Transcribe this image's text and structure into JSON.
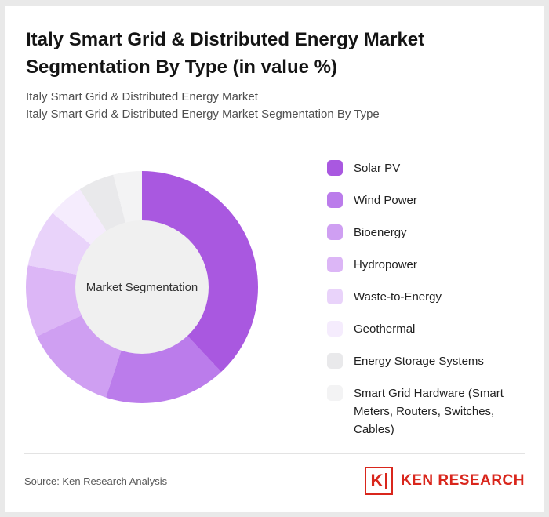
{
  "page": {
    "title": "Italy Smart Grid & Distributed Energy Market Segmentation By Type (in value %)",
    "subtitle1": "Italy Smart Grid & Distributed Energy Market",
    "subtitle2": "Italy Smart Grid & Distributed Energy Market Segmentation By Type"
  },
  "chart_data": {
    "type": "pie",
    "donut": true,
    "title": "Italy Smart Grid & Distributed Energy Market Segmentation By Type (in value %)",
    "center_label": "Market Segmentation",
    "legend_position": "right",
    "categories": [
      "Solar PV",
      "Wind Power",
      "Bioenergy",
      "Hydropower",
      "Waste-to-Energy",
      "Geothermal",
      "Energy Storage Systems",
      "Smart Grid Hardware (Smart Meters, Routers, Switches, Cables)"
    ],
    "values": [
      38,
      17,
      13,
      10,
      8,
      5,
      5,
      4
    ],
    "colors": [
      "#a958e0",
      "#bb7ceb",
      "#cf9ff2",
      "#dcb6f6",
      "#e9d3fa",
      "#f5ecfd",
      "#e9e9eb",
      "#f3f3f4"
    ],
    "center_fill": "#f0f0f0"
  },
  "footer": {
    "source": "Source: Ken Research Analysis",
    "logo_k": "K",
    "logo_text": "KEN RESEARCH",
    "logo_color": "#d9261c"
  }
}
